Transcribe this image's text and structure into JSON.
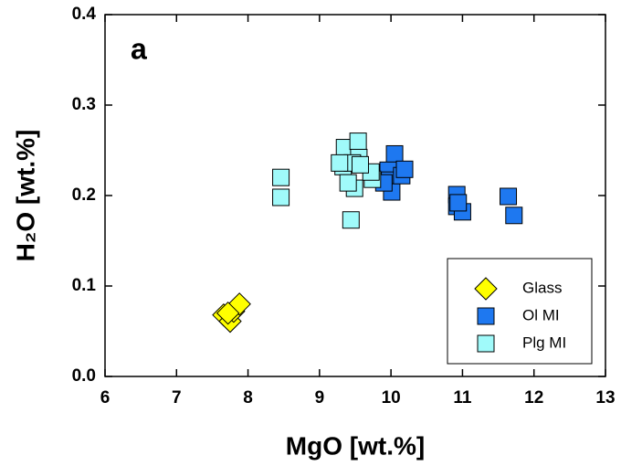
{
  "chart_data": {
    "type": "scatter",
    "panel_label": "a",
    "x_label": "MgO [wt.%]",
    "y_label": "H₂O [wt.%]",
    "xlim": [
      6,
      13
    ],
    "xticks": [
      6,
      7,
      8,
      9,
      10,
      11,
      12,
      13
    ],
    "ylim": [
      0,
      0.4
    ],
    "yticks": [
      {
        "value": 0,
        "label": "0.0"
      },
      0.1,
      0.2,
      0.3,
      0.4
    ],
    "legend": "bottom-right",
    "series": [
      {
        "name": "Glass",
        "color": "#ffff00",
        "marker": "diamond",
        "x": [
          7.66,
          7.75,
          7.8,
          7.88,
          7.72
        ],
        "values": [
          0.068,
          0.061,
          0.072,
          0.08,
          0.07
        ]
      },
      {
        "name": "Ol MI",
        "color": "#1e78f0",
        "marker": "square",
        "x": [
          10.05,
          9.96,
          9.98,
          10.01,
          10.15,
          10.19,
          10.92,
          10.92,
          11.0,
          10.94,
          11.64,
          11.72,
          9.9
        ],
        "values": [
          0.246,
          0.228,
          0.217,
          0.204,
          0.222,
          0.229,
          0.201,
          0.188,
          0.182,
          0.192,
          0.199,
          0.178,
          0.214
        ]
      },
      {
        "name": "Plg MI",
        "color": "#a0fafa",
        "marker": "square",
        "x": [
          8.46,
          8.46,
          9.44,
          9.35,
          9.33,
          9.54,
          9.55,
          9.49,
          9.4,
          9.74,
          9.72,
          9.46,
          9.57,
          9.28
        ],
        "values": [
          0.22,
          0.198,
          0.173,
          0.253,
          0.232,
          0.26,
          0.242,
          0.208,
          0.214,
          0.218,
          0.226,
          0.236,
          0.234,
          0.236
        ]
      }
    ]
  }
}
